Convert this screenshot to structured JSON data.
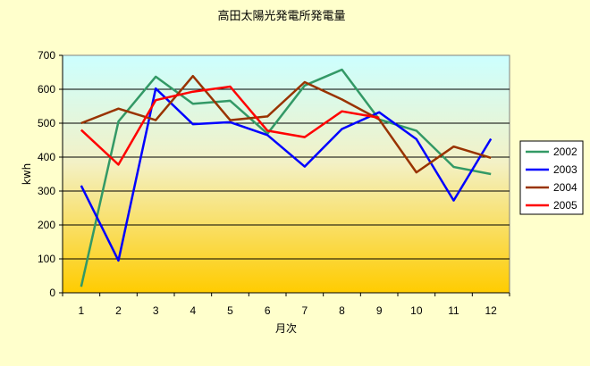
{
  "chart_data": {
    "type": "line",
    "title": "高田太陽光発電所発電量",
    "xlabel": "月次",
    "ylabel": "kwh",
    "categories": [
      "1",
      "2",
      "3",
      "4",
      "5",
      "6",
      "7",
      "8",
      "9",
      "10",
      "11",
      "12"
    ],
    "ylim": [
      0,
      700
    ],
    "yticks": [
      "0",
      "100",
      "200",
      "300",
      "400",
      "500",
      "600",
      "700"
    ],
    "grid": true,
    "legend_position": "right",
    "series": [
      {
        "name": "2002",
        "color": "#339966",
        "values": [
          18,
          505,
          637,
          557,
          566,
          469,
          611,
          658,
          511,
          478,
          371,
          350
        ]
      },
      {
        "name": "2003",
        "color": "#0000ff",
        "values": [
          316,
          95,
          602,
          497,
          503,
          465,
          372,
          483,
          532,
          453,
          272,
          454
        ]
      },
      {
        "name": "2004",
        "color": "#993300",
        "values": [
          500,
          543,
          509,
          639,
          509,
          520,
          621,
          570,
          511,
          355,
          431,
          398
        ]
      },
      {
        "name": "2005",
        "color": "#ff0000",
        "values": [
          480,
          378,
          568,
          593,
          608,
          478,
          459,
          535,
          516,
          null,
          null,
          null
        ]
      }
    ],
    "colors": {
      "chart_background": "#ffffcc",
      "plot_top": "#ccffff",
      "plot_bottom": "#ffcc00",
      "grid": "#000000"
    }
  }
}
